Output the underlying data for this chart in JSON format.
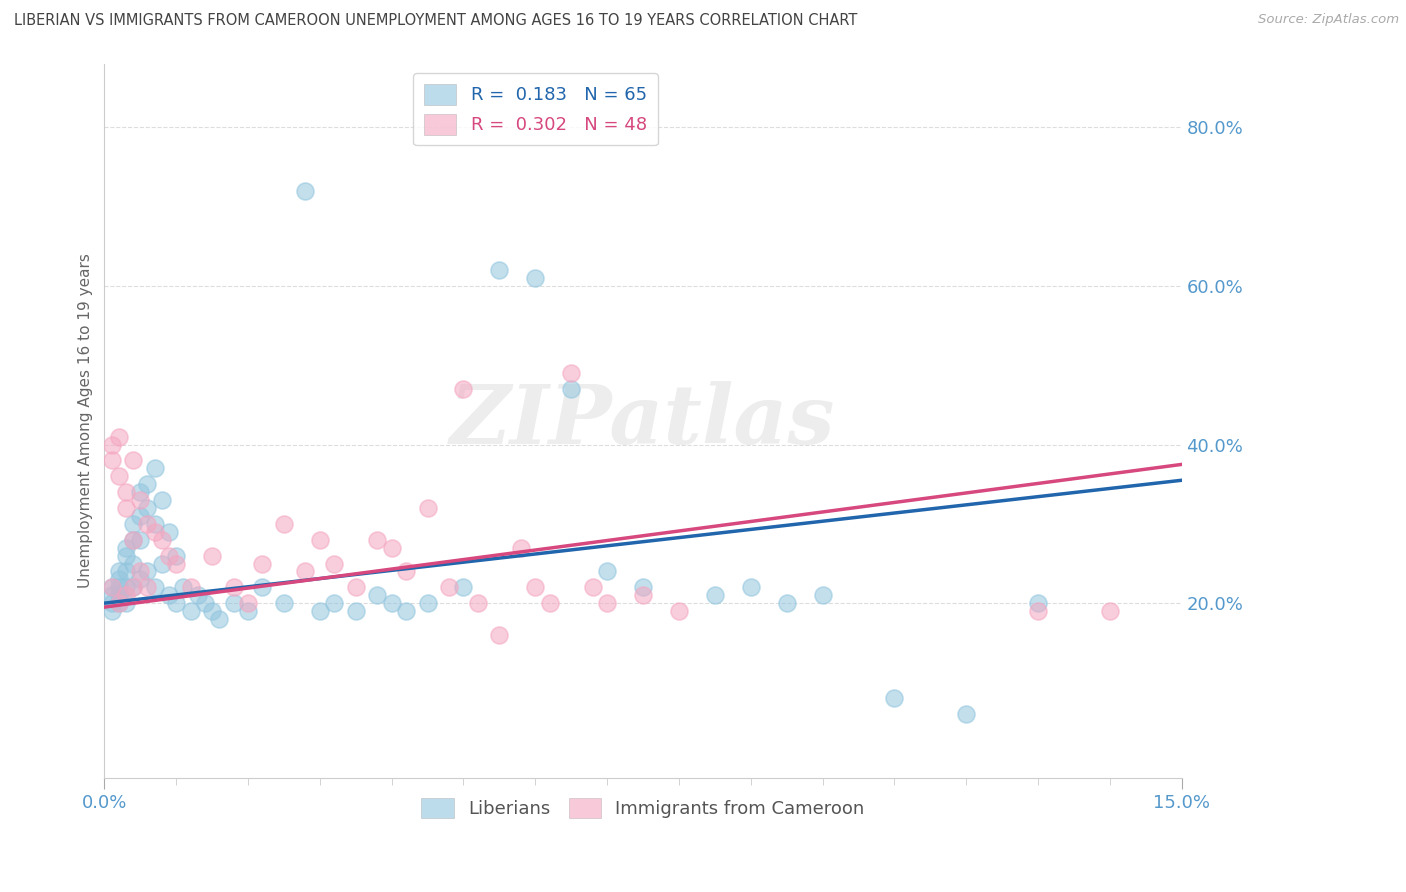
{
  "title": "LIBERIAN VS IMMIGRANTS FROM CAMEROON UNEMPLOYMENT AMONG AGES 16 TO 19 YEARS CORRELATION CHART",
  "source": "Source: ZipAtlas.com",
  "ylabel": "Unemployment Among Ages 16 to 19 years",
  "xlim": [
    0.0,
    0.15
  ],
  "ylim": [
    -0.02,
    0.88
  ],
  "ytick_labels": [
    "20.0%",
    "40.0%",
    "60.0%",
    "80.0%"
  ],
  "ytick_values": [
    0.2,
    0.4,
    0.6,
    0.8
  ],
  "liberians_R": 0.183,
  "liberians_N": 65,
  "cameroon_R": 0.302,
  "cameroon_N": 48,
  "blue_color": "#92c5de",
  "pink_color": "#f4a6c0",
  "blue_line_color": "#2166ac",
  "pink_line_color": "#d6487e",
  "title_color": "#444444",
  "axis_label_color": "#666666",
  "tick_color": "#5599cc",
  "grid_color": "#dddddd",
  "watermark": "ZIPatlas",
  "lib_line_x0": 0.0,
  "lib_line_y0": 0.2,
  "lib_line_x1": 0.15,
  "lib_line_y1": 0.355,
  "cam_line_x0": 0.0,
  "cam_line_y0": 0.195,
  "cam_line_x1": 0.15,
  "cam_line_y1": 0.375,
  "lib_x": [
    0.001,
    0.001,
    0.001,
    0.001,
    0.002,
    0.002,
    0.002,
    0.002,
    0.002,
    0.003,
    0.003,
    0.003,
    0.003,
    0.003,
    0.004,
    0.004,
    0.004,
    0.004,
    0.005,
    0.005,
    0.005,
    0.005,
    0.006,
    0.006,
    0.006,
    0.007,
    0.007,
    0.007,
    0.008,
    0.008,
    0.009,
    0.009,
    0.01,
    0.01,
    0.011,
    0.012,
    0.013,
    0.014,
    0.015,
    0.016,
    0.018,
    0.02,
    0.022,
    0.025,
    0.028,
    0.03,
    0.032,
    0.035,
    0.038,
    0.04,
    0.042,
    0.045,
    0.05,
    0.055,
    0.06,
    0.065,
    0.07,
    0.075,
    0.085,
    0.09,
    0.095,
    0.1,
    0.11,
    0.12,
    0.13
  ],
  "lib_y": [
    0.21,
    0.2,
    0.19,
    0.22,
    0.24,
    0.23,
    0.22,
    0.21,
    0.2,
    0.27,
    0.26,
    0.24,
    0.22,
    0.2,
    0.3,
    0.28,
    0.25,
    0.22,
    0.34,
    0.31,
    0.28,
    0.23,
    0.35,
    0.32,
    0.24,
    0.37,
    0.3,
    0.22,
    0.33,
    0.25,
    0.29,
    0.21,
    0.26,
    0.2,
    0.22,
    0.19,
    0.21,
    0.2,
    0.19,
    0.18,
    0.2,
    0.19,
    0.22,
    0.2,
    0.72,
    0.19,
    0.2,
    0.19,
    0.21,
    0.2,
    0.19,
    0.2,
    0.22,
    0.62,
    0.61,
    0.47,
    0.24,
    0.22,
    0.21,
    0.22,
    0.2,
    0.21,
    0.08,
    0.06,
    0.2
  ],
  "cam_x": [
    0.001,
    0.001,
    0.001,
    0.002,
    0.002,
    0.002,
    0.003,
    0.003,
    0.003,
    0.004,
    0.004,
    0.004,
    0.005,
    0.005,
    0.006,
    0.006,
    0.007,
    0.008,
    0.009,
    0.01,
    0.012,
    0.015,
    0.018,
    0.02,
    0.022,
    0.025,
    0.028,
    0.03,
    0.032,
    0.035,
    0.038,
    0.04,
    0.042,
    0.045,
    0.048,
    0.05,
    0.052,
    0.055,
    0.058,
    0.06,
    0.062,
    0.065,
    0.068,
    0.07,
    0.075,
    0.08,
    0.13,
    0.14
  ],
  "cam_y": [
    0.22,
    0.4,
    0.38,
    0.41,
    0.36,
    0.2,
    0.34,
    0.32,
    0.21,
    0.38,
    0.28,
    0.22,
    0.33,
    0.24,
    0.3,
    0.22,
    0.29,
    0.28,
    0.26,
    0.25,
    0.22,
    0.26,
    0.22,
    0.2,
    0.25,
    0.3,
    0.24,
    0.28,
    0.25,
    0.22,
    0.28,
    0.27,
    0.24,
    0.32,
    0.22,
    0.47,
    0.2,
    0.16,
    0.27,
    0.22,
    0.2,
    0.49,
    0.22,
    0.2,
    0.21,
    0.19,
    0.19,
    0.19
  ]
}
